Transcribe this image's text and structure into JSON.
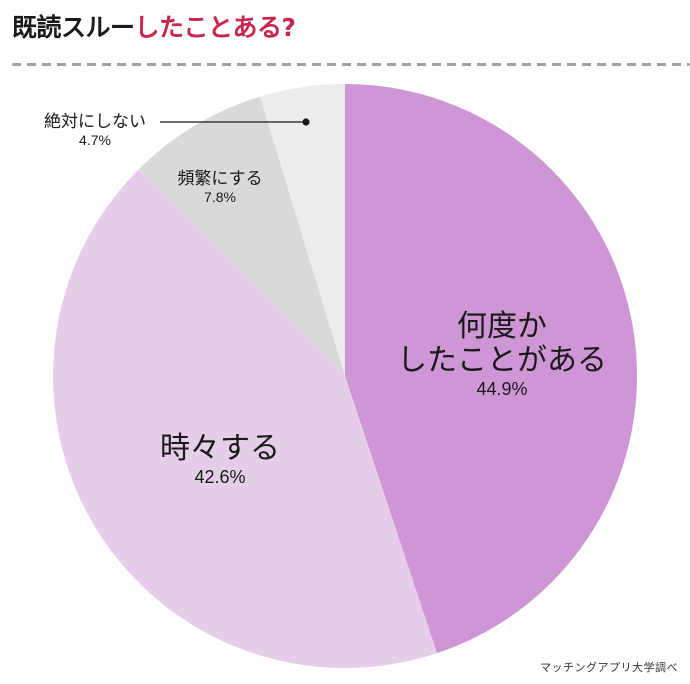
{
  "title": {
    "part1": "既読スルー",
    "part2": "したことある?",
    "part1_color": "#1a1a1a",
    "part2_color": "#c8264f"
  },
  "source": "マッチングアプリ大学調べ",
  "chart_data": {
    "type": "pie",
    "title": "既読スルーしたことある?",
    "start_angle_deg": 0,
    "direction": "clockwise",
    "center": [
      345,
      376
    ],
    "radius": 292,
    "slices": [
      {
        "label": "何度かしたことがある",
        "label_lines": [
          "何度か",
          "したことがある"
        ],
        "value": 44.9,
        "pct_text": "44.9%",
        "color": "#cf96d6"
      },
      {
        "label": "時々する",
        "label_lines": [
          "時々する"
        ],
        "value": 42.6,
        "pct_text": "42.6%",
        "color": "#e6cdea"
      },
      {
        "label": "頻繁にする",
        "label_lines": [
          "頻繁にする"
        ],
        "value": 7.8,
        "pct_text": "7.8%",
        "color": "#d9d9d9"
      },
      {
        "label": "絶対にしない",
        "label_lines": [
          "絶対にしない"
        ],
        "value": 4.7,
        "pct_text": "4.7%",
        "color": "#ececec",
        "callout": true
      }
    ],
    "legend": "none",
    "source": "マッチングアプリ大学調べ"
  }
}
